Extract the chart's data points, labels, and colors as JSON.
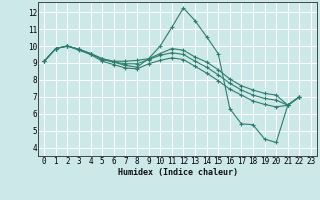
{
  "xlabel": "Humidex (Indice chaleur)",
  "bg_color": "#cce8e8",
  "grid_color": "#ffffff",
  "line_color": "#2e7d6e",
  "xlim": [
    -0.5,
    23.5
  ],
  "ylim": [
    3.5,
    12.6
  ],
  "xticks": [
    0,
    1,
    2,
    3,
    4,
    5,
    6,
    7,
    8,
    9,
    10,
    11,
    12,
    13,
    14,
    15,
    16,
    17,
    18,
    19,
    20,
    21,
    22,
    23
  ],
  "yticks": [
    4,
    5,
    6,
    7,
    8,
    9,
    10,
    11,
    12
  ],
  "series": [
    [
      9.1,
      9.85,
      10.0,
      9.8,
      9.55,
      9.25,
      9.05,
      8.85,
      8.75,
      9.25,
      10.0,
      11.1,
      12.25,
      11.5,
      10.55,
      9.55,
      6.3,
      5.4,
      5.35,
      4.5,
      4.3,
      6.5,
      7.0
    ],
    [
      9.1,
      9.85,
      10.0,
      9.8,
      9.55,
      9.25,
      9.1,
      9.1,
      9.15,
      9.25,
      9.55,
      9.85,
      9.75,
      9.35,
      9.05,
      8.6,
      8.05,
      7.65,
      7.4,
      7.2,
      7.1,
      6.5,
      7.0
    ],
    [
      9.1,
      9.85,
      10.0,
      9.8,
      9.55,
      9.2,
      9.05,
      8.95,
      8.95,
      9.2,
      9.45,
      9.6,
      9.5,
      9.1,
      8.75,
      8.3,
      7.8,
      7.4,
      7.1,
      6.9,
      6.8,
      6.5,
      7.0
    ],
    [
      9.1,
      9.85,
      10.0,
      9.75,
      9.5,
      9.1,
      8.9,
      8.7,
      8.65,
      8.95,
      9.15,
      9.3,
      9.2,
      8.8,
      8.4,
      7.95,
      7.45,
      7.1,
      6.75,
      6.55,
      6.4,
      6.5,
      7.0
    ]
  ],
  "x_indices": [
    0,
    1,
    2,
    3,
    4,
    5,
    6,
    7,
    8,
    9,
    10,
    11,
    12,
    13,
    14,
    15,
    16,
    17,
    18,
    19,
    20,
    21,
    22
  ]
}
